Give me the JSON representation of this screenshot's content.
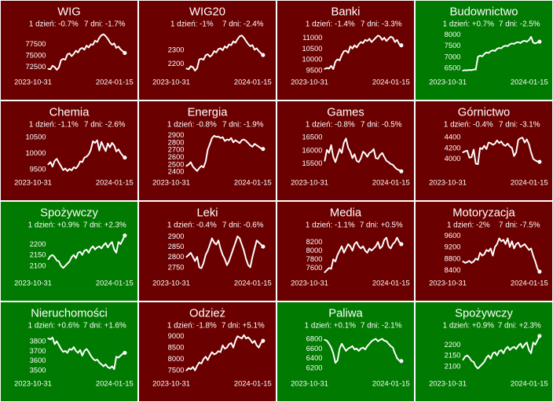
{
  "colors": {
    "down": "#6b0000",
    "up": "#007a00",
    "line": "#ffffff",
    "border": "#ffffff"
  },
  "chart_data": [
    {
      "type": "line",
      "title": "WIG",
      "day1": "1 dzień: -0.7%",
      "day7": "7 dni: -1.7%",
      "trend": "down",
      "x_start": "2023-10-31",
      "x_end": "2024-01-15",
      "ylim": [
        71000,
        80500
      ],
      "yticks": [
        "77500",
        "75000",
        "72500"
      ],
      "ytick_values": [
        77500,
        75000,
        72500
      ],
      "values": [
        72000,
        71900,
        72700,
        72400,
        71800,
        72300,
        73900,
        74200,
        74000,
        75200,
        75400,
        74800,
        75300,
        76000,
        75600,
        76400,
        76600,
        76200,
        77100,
        76700,
        77400,
        77300,
        78200,
        77900,
        78800,
        79400,
        79600,
        79200,
        78600,
        77800,
        77300,
        77600,
        76600,
        76900,
        76300,
        75900,
        75500
      ]
    },
    {
      "type": "line",
      "title": "WIG20",
      "day1": "1 dzień: -1%",
      "day7": "7 dni: -2.4%",
      "trend": "down",
      "x_start": "2023-10-31",
      "x_end": "2024-01-15",
      "ylim": [
        2130,
        2440
      ],
      "yticks": [
        "2300",
        "2200"
      ],
      "ytick_values": [
        2300,
        2200
      ],
      "values": [
        2165,
        2160,
        2182,
        2175,
        2150,
        2168,
        2230,
        2236,
        2228,
        2260,
        2268,
        2250,
        2262,
        2290,
        2280,
        2305,
        2310,
        2296,
        2324,
        2312,
        2338,
        2332,
        2360,
        2350,
        2375,
        2396,
        2402,
        2385,
        2362,
        2340,
        2325,
        2333,
        2300,
        2310,
        2290,
        2275,
        2262
      ]
    },
    {
      "type": "line",
      "title": "Banki",
      "day1": "1 dzień: -1.4%",
      "day7": "7 dni: -3.3%",
      "trend": "down",
      "x_start": "2023-10-31",
      "x_end": "2024-01-15",
      "ylim": [
        9350,
        11350
      ],
      "yticks": [
        "11000",
        "10500",
        "10000",
        "9500"
      ],
      "ytick_values": [
        11000,
        10500,
        10000,
        9500
      ],
      "values": [
        9560,
        9600,
        9580,
        9700,
        9550,
        9900,
        10000,
        9950,
        10200,
        10380,
        10400,
        10300,
        10600,
        10500,
        10650,
        10550,
        10700,
        10800,
        10750,
        10900,
        10850,
        10950,
        10800,
        10900,
        11000,
        11100,
        11050,
        10900,
        11000,
        10850,
        10950,
        11050,
        11000,
        10800,
        10900,
        10700,
        10650
      ]
    },
    {
      "type": "line",
      "title": "Budownictwo",
      "day1": "1 dzień: +0.7%",
      "day7": "7 dni: -2.5%",
      "trend": "up",
      "x_start": "2023-10-31",
      "x_end": "2024-01-15",
      "ylim": [
        6250,
        8200
      ],
      "yticks": [
        "8000",
        "7500",
        "7000",
        "6500"
      ],
      "ytick_values": [
        8000,
        7500,
        7000,
        6500
      ],
      "values": [
        6380,
        6400,
        6390,
        6410,
        6395,
        6430,
        6420,
        7000,
        7050,
        7020,
        7120,
        7200,
        7170,
        7250,
        7290,
        7260,
        7360,
        7400,
        7380,
        7470,
        7500,
        7480,
        7560,
        7600,
        7580,
        7640,
        7660,
        7620,
        7700,
        7720,
        7680,
        7750,
        7900,
        7640,
        7600,
        7650,
        7680
      ]
    },
    {
      "type": "line",
      "title": "Chemia",
      "day1": "1 dzień: -1.1%",
      "day7": "7 dni: -2.6%",
      "trend": "down",
      "x_start": "2023-10-31",
      "x_end": "2024-01-15",
      "ylim": [
        9350,
        10700
      ],
      "yticks": [
        "10500",
        "10000",
        "9500"
      ],
      "ytick_values": [
        10500,
        10000,
        9500
      ],
      "values": [
        9650,
        9720,
        9580,
        9760,
        9820,
        9700,
        9590,
        9470,
        9520,
        9440,
        9510,
        9460,
        9560,
        9520,
        9600,
        9740,
        9720,
        9860,
        9890,
        9960,
        10100,
        10370,
        10320,
        10400,
        10080,
        10350,
        10200,
        10060,
        10300,
        10180,
        10320,
        10240,
        10050,
        10120,
        10010,
        9920,
        9860
      ]
    },
    {
      "type": "line",
      "title": "Energia",
      "day1": "1 dzień: -0.8%",
      "day7": "7 dni: -1.9%",
      "trend": "down",
      "x_start": "2023-10-31",
      "x_end": "2024-01-15",
      "ylim": [
        2370,
        2960
      ],
      "yticks": [
        "2900",
        "2800",
        "2700",
        "2600",
        "2500",
        "2400"
      ],
      "ytick_values": [
        2900,
        2800,
        2700,
        2600,
        2500,
        2400
      ],
      "values": [
        2480,
        2500,
        2530,
        2470,
        2440,
        2410,
        2450,
        2480,
        2460,
        2540,
        2700,
        2780,
        2860,
        2890,
        2875,
        2880,
        2860,
        2870,
        2820,
        2840,
        2830,
        2860,
        2800,
        2830,
        2810,
        2790,
        2830,
        2840,
        2820,
        2790,
        2760,
        2740,
        2780,
        2760,
        2740,
        2720,
        2710
      ]
    },
    {
      "type": "line",
      "title": "Games",
      "day1": "1 dzień: -0.8%",
      "day7": "7 dni: -0.5%",
      "trend": "down",
      "x_start": "2023-10-31",
      "x_end": "2024-01-15",
      "ylim": [
        15100,
        16750
      ],
      "yticks": [
        "16500",
        "16000",
        "15500"
      ],
      "ytick_values": [
        16500,
        16000,
        15500
      ],
      "values": [
        15600,
        16020,
        15900,
        16200,
        15750,
        15550,
        15800,
        16050,
        15900,
        16300,
        16450,
        16100,
        15950,
        15700,
        15850,
        15600,
        15550,
        15700,
        15950,
        15880,
        15750,
        15900,
        15950,
        16050,
        15700,
        15680,
        15820,
        15900,
        15750,
        15600,
        15550,
        15480,
        15450,
        15350,
        15280,
        15240,
        15200
      ]
    },
    {
      "type": "line",
      "title": "Górnictwo",
      "day1": "1 dzień: -0.4%",
      "day7": "7 dni: -3.1%",
      "trend": "down",
      "x_start": "2023-10-31",
      "x_end": "2024-01-15",
      "ylim": [
        3720,
        4520
      ],
      "yticks": [
        "4400",
        "4200",
        "4000"
      ],
      "ytick_values": [
        4400,
        4200,
        4000
      ],
      "values": [
        4120,
        4140,
        4150,
        4020,
        4030,
        4170,
        3910,
        3900,
        4200,
        4180,
        4240,
        4180,
        4300,
        4290,
        4260,
        4280,
        4340,
        4290,
        4320,
        4260,
        4240,
        4280,
        4230,
        4200,
        4050,
        4120,
        4350,
        4380,
        4390,
        4300,
        4360,
        4270,
        4120,
        4000,
        3970,
        3950,
        3945
      ]
    },
    {
      "type": "line",
      "title": "Spożywczy",
      "day1": "1 dzień: +0.9%",
      "day7": "7 dni: +2.3%",
      "trend": "up",
      "x_start": "2023-10-31",
      "x_end": "2024-01-15",
      "ylim": [
        2060,
        2260
      ],
      "yticks": [
        "2200",
        "2150",
        "2100"
      ],
      "ytick_values": [
        2200,
        2150,
        2100
      ],
      "values": [
        2130,
        2145,
        2150,
        2140,
        2125,
        2120,
        2100,
        2090,
        2100,
        2110,
        2120,
        2140,
        2150,
        2135,
        2160,
        2165,
        2150,
        2170,
        2175,
        2160,
        2180,
        2190,
        2175,
        2185,
        2190,
        2180,
        2195,
        2205,
        2185,
        2200,
        2210,
        2175,
        2160,
        2210,
        2200,
        2220,
        2240
      ]
    },
    {
      "type": "line",
      "title": "Leki",
      "day1": "1 dzień: -0.4%",
      "day7": "7 dni: -0.6%",
      "trend": "down",
      "x_start": "2023-10-31",
      "x_end": "2024-01-15",
      "ylim": [
        2715,
        2925
      ],
      "yticks": [
        "2900",
        "2850",
        "2800",
        "2750"
      ],
      "ytick_values": [
        2900,
        2850,
        2800,
        2750
      ],
      "values": [
        2800,
        2810,
        2820,
        2800,
        2780,
        2800,
        2750,
        2745,
        2770,
        2810,
        2830,
        2860,
        2890,
        2870,
        2860,
        2880,
        2840,
        2810,
        2790,
        2760,
        2780,
        2810,
        2840,
        2870,
        2900,
        2890,
        2860,
        2830,
        2790,
        2760,
        2750,
        2800,
        2840,
        2880,
        2870,
        2860,
        2850
      ]
    },
    {
      "type": "line",
      "title": "Media",
      "day1": "1 dzień: -1.1%",
      "day7": "7 dni: +0.5%",
      "trend": "down",
      "x_start": "2023-10-31",
      "x_end": "2024-01-15",
      "ylim": [
        7450,
        8450
      ],
      "yticks": [
        "8200",
        "8000",
        "7800",
        "7600"
      ],
      "ytick_values": [
        8200,
        8000,
        7800,
        7600
      ],
      "values": [
        7500,
        7550,
        7600,
        7580,
        7800,
        7750,
        7900,
        8000,
        8100,
        7950,
        8050,
        8150,
        8100,
        8000,
        8150,
        8200,
        8100,
        8050,
        8100,
        8000,
        7950,
        8050,
        8000,
        8050,
        8100,
        8200,
        8050,
        8100,
        8250,
        8300,
        8100,
        8050,
        8150,
        8200,
        8300,
        8200,
        8150
      ]
    },
    {
      "type": "line",
      "title": "Motoryzacja",
      "day1": "1 dzień: -2%",
      "day7": "7 dni: -7.5%",
      "trend": "down",
      "x_start": "2023-10-31",
      "x_end": "2024-01-15",
      "ylim": [
        8250,
        9750
      ],
      "yticks": [
        "9600",
        "9200",
        "8800",
        "8400"
      ],
      "ytick_values": [
        9600,
        9200,
        8800,
        8400
      ],
      "values": [
        8700,
        8650,
        8680,
        8720,
        8650,
        8700,
        8800,
        8750,
        9000,
        8900,
        8950,
        9100,
        9050,
        9150,
        8900,
        9200,
        9300,
        9500,
        9400,
        9450,
        9300,
        9500,
        9200,
        9400,
        9150,
        9300,
        9350,
        9200,
        9250,
        9300,
        9200,
        9100,
        9150,
        8900,
        8700,
        8450,
        8350
      ]
    },
    {
      "type": "line",
      "title": "Nieruchomości",
      "day1": "1 dzień: +0.6%",
      "day7": "7 dni: +1.6%",
      "trend": "up",
      "x_start": "2023-10-31",
      "x_end": "2024-01-15",
      "ylim": [
        3450,
        3900
      ],
      "yticks": [
        "3800",
        "3700",
        "3600",
        "3500"
      ],
      "ytick_values": [
        3800,
        3700,
        3600,
        3500
      ],
      "values": [
        3830,
        3820,
        3840,
        3770,
        3800,
        3760,
        3720,
        3690,
        3700,
        3680,
        3720,
        3710,
        3740,
        3700,
        3680,
        3710,
        3650,
        3700,
        3720,
        3690,
        3650,
        3620,
        3600,
        3610,
        3580,
        3560,
        3540,
        3560,
        3530,
        3520,
        3540,
        3510,
        3640,
        3630,
        3650,
        3670,
        3680
      ]
    },
    {
      "type": "line",
      "title": "Odzież",
      "day1": "1 dzień: -1.8%",
      "day7": "7 dni: +5.1%",
      "trend": "down",
      "x_start": "2023-10-31",
      "x_end": "2024-01-15",
      "ylim": [
        7300,
        9200
      ],
      "yticks": [
        "9000",
        "8500",
        "8000",
        "7500"
      ],
      "ytick_values": [
        9000,
        8500,
        8000,
        7500
      ],
      "values": [
        7500,
        7600,
        7550,
        7650,
        7500,
        7700,
        7850,
        7800,
        8000,
        8100,
        7950,
        8150,
        8300,
        8200,
        8250,
        8350,
        8300,
        8600,
        8450,
        8500,
        8650,
        8700,
        8500,
        8800,
        9000,
        8950,
        8900,
        9050,
        8900,
        8950,
        8850,
        8700,
        8800,
        8600,
        8500,
        8700,
        8800
      ]
    },
    {
      "type": "line",
      "title": "Paliwa",
      "day1": "1 dzień: +0.1%",
      "day7": "7 dni: -2.1%",
      "trend": "up",
      "x_start": "2023-10-31",
      "x_end": "2024-01-15",
      "ylim": [
        6050,
        6950
      ],
      "yticks": [
        "6800",
        "6600",
        "6400",
        "6200"
      ],
      "ytick_values": [
        6800,
        6600,
        6400,
        6200
      ],
      "values": [
        6780,
        6760,
        6700,
        6620,
        6500,
        6300,
        6350,
        6600,
        6700,
        6620,
        6550,
        6600,
        6620,
        6650,
        6580,
        6600,
        6550,
        6600,
        6620,
        6580,
        6650,
        6700,
        6750,
        6780,
        6800,
        6750,
        6780,
        6800,
        6760,
        6750,
        6700,
        6650,
        6620,
        6500,
        6400,
        6350,
        6340
      ]
    },
    {
      "type": "line",
      "title": "Spożywczy",
      "day1": "1 dzień: +0.9%",
      "day7": "7 dni: +2.3%",
      "trend": "up",
      "x_start": "2023-10-31",
      "x_end": "2024-01-15",
      "ylim": [
        2060,
        2260
      ],
      "yticks": [
        "2200",
        "2150",
        "2100"
      ],
      "ytick_values": [
        2200,
        2150,
        2100
      ],
      "values": [
        2130,
        2145,
        2150,
        2140,
        2125,
        2120,
        2100,
        2090,
        2100,
        2110,
        2120,
        2140,
        2150,
        2135,
        2160,
        2165,
        2150,
        2170,
        2175,
        2160,
        2180,
        2190,
        2175,
        2185,
        2190,
        2180,
        2195,
        2205,
        2185,
        2200,
        2210,
        2175,
        2160,
        2210,
        2200,
        2220,
        2240
      ]
    }
  ]
}
